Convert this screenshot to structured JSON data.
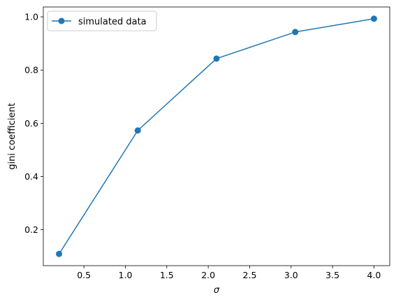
{
  "chart_data": {
    "type": "line",
    "xlabel": "σ",
    "ylabel": "gini coefficient",
    "xlim": [
      0.01,
      4.19
    ],
    "ylim": [
      0.065,
      1.037
    ],
    "xticks": [
      0.5,
      1.0,
      1.5,
      2.0,
      2.5,
      3.0,
      3.5,
      4.0
    ],
    "xtick_labels": [
      "0.5",
      "1.0",
      "1.5",
      "2.0",
      "2.5",
      "3.0",
      "3.5",
      "4.0"
    ],
    "yticks": [
      0.2,
      0.4,
      0.6,
      0.8,
      1.0
    ],
    "ytick_labels": [
      "0.2",
      "0.4",
      "0.6",
      "0.8",
      "1.0"
    ],
    "grid": false,
    "legend_position": "top-left",
    "series": [
      {
        "name": "simulated data",
        "color": "#1f77b4",
        "marker": "circle",
        "x": [
          0.2,
          1.15,
          2.1,
          3.05,
          4.0
        ],
        "y": [
          0.109,
          0.573,
          0.843,
          0.943,
          0.993
        ]
      }
    ]
  }
}
